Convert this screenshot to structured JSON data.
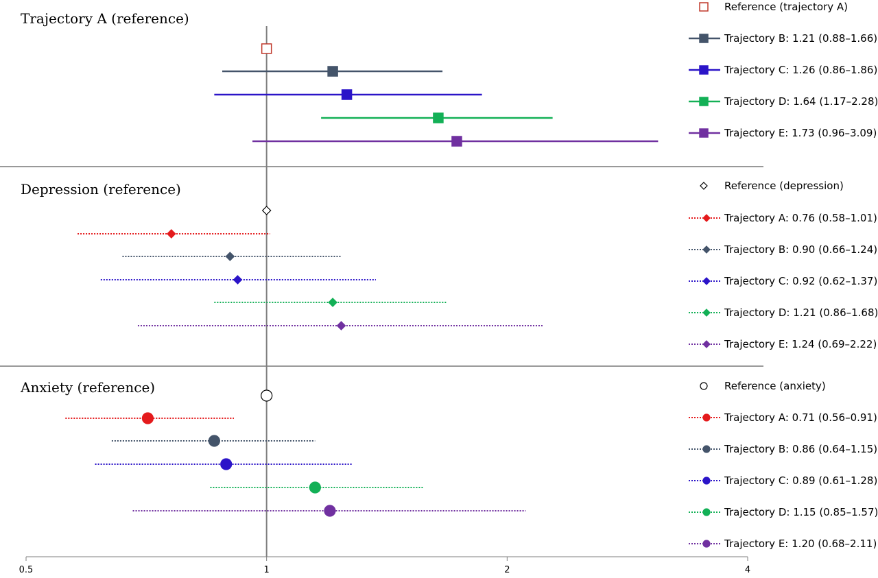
{
  "chart_data": {
    "type": "forest",
    "x_scale": "log2",
    "xlim": [
      0.5,
      4
    ],
    "x_ticks": [
      "0.5",
      "1",
      "2",
      "4"
    ],
    "reference_line_x": 1,
    "panels": [
      {
        "title": "Trajectory A (reference)",
        "marker": "square",
        "line_style": "solid",
        "reference_label": "Reference (trajectory A)",
        "reference_color": "#c0392b",
        "rows": [
          {
            "label": "Trajectory B: 1.21 (0.88–1.66)",
            "estimate": 1.21,
            "lower": 0.88,
            "upper": 1.66,
            "color": "#44546a"
          },
          {
            "label": "Trajectory C: 1.26 (0.86–1.86)",
            "estimate": 1.26,
            "lower": 0.86,
            "upper": 1.86,
            "color": "#2b14c8"
          },
          {
            "label": "Trajectory D: 1.64 (1.17–2.28)",
            "estimate": 1.64,
            "lower": 1.17,
            "upper": 2.28,
            "color": "#13b056"
          },
          {
            "label": "Trajectory E: 1.73 (0.96–3.09)",
            "estimate": 1.73,
            "lower": 0.96,
            "upper": 3.09,
            "color": "#7030a0"
          }
        ]
      },
      {
        "title": "Depression (reference)",
        "marker": "diamond",
        "line_style": "dotted",
        "reference_label": "Reference (depression)",
        "reference_color": "#000000",
        "rows": [
          {
            "label": "Trajectory A: 0.76 (0.58–1.01)",
            "estimate": 0.76,
            "lower": 0.58,
            "upper": 1.01,
            "color": "#e41a1c"
          },
          {
            "label": "Trajectory B: 0.90 (0.66–1.24)",
            "estimate": 0.9,
            "lower": 0.66,
            "upper": 1.24,
            "color": "#44546a"
          },
          {
            "label": "Trajectory C: 0.92 (0.62–1.37)",
            "estimate": 0.92,
            "lower": 0.62,
            "upper": 1.37,
            "color": "#2b14c8"
          },
          {
            "label": "Trajectory D: 1.21 (0.86–1.68)",
            "estimate": 1.21,
            "lower": 0.86,
            "upper": 1.68,
            "color": "#13b056"
          },
          {
            "label": "Trajectory E: 1.24 (0.69–2.22)",
            "estimate": 1.24,
            "lower": 0.69,
            "upper": 2.22,
            "color": "#7030a0"
          }
        ]
      },
      {
        "title": "Anxiety (reference)",
        "marker": "circle",
        "line_style": "dotted",
        "reference_label": "Reference (anxiety)",
        "reference_color": "#000000",
        "rows": [
          {
            "label": "Trajectory A: 0.71 (0.56–0.91)",
            "estimate": 0.71,
            "lower": 0.56,
            "upper": 0.91,
            "color": "#e41a1c"
          },
          {
            "label": "Trajectory B: 0.86 (0.64–1.15)",
            "estimate": 0.86,
            "lower": 0.64,
            "upper": 1.15,
            "color": "#44546a"
          },
          {
            "label": "Trajectory C: 0.89 (0.61–1.28)",
            "estimate": 0.89,
            "lower": 0.61,
            "upper": 1.28,
            "color": "#2b14c8"
          },
          {
            "label": "Trajectory D: 1.15 (0.85–1.57)",
            "estimate": 1.15,
            "lower": 0.85,
            "upper": 1.57,
            "color": "#13b056"
          },
          {
            "label": "Trajectory E: 1.20 (0.68–2.11)",
            "estimate": 1.2,
            "lower": 0.68,
            "upper": 2.11,
            "color": "#7030a0"
          }
        ]
      }
    ]
  }
}
